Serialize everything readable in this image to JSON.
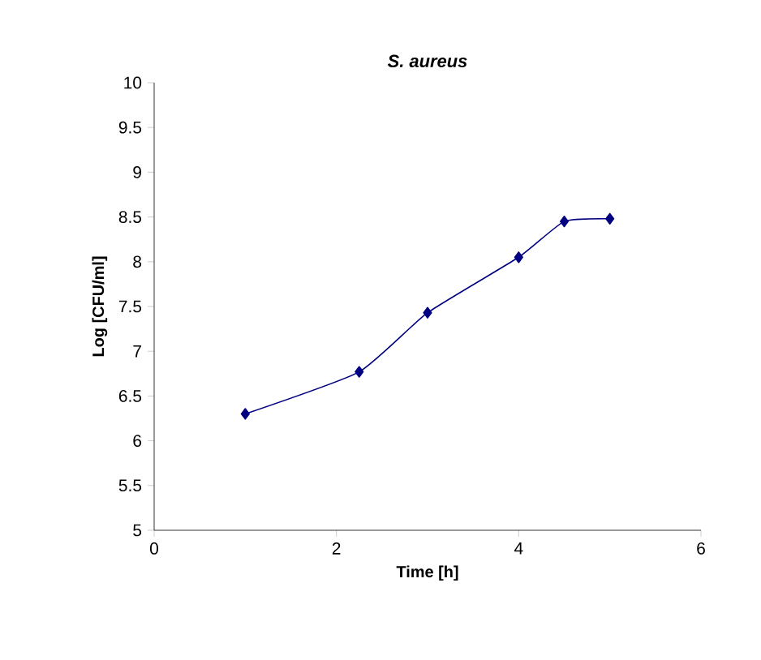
{
  "chart_data": {
    "type": "line",
    "title": "*S. aureus*",
    "xlabel": "Time [h]",
    "ylabel": "Log [CFU/ml]",
    "x": [
      1,
      2.25,
      3,
      4,
      4.5,
      5
    ],
    "series": [
      {
        "color": "#000080",
        "values": [
          6.3,
          6.77,
          7.43,
          8.05,
          8.45,
          8.48
        ]
      }
    ],
    "xlim": [
      0,
      6
    ],
    "xticks": [
      0,
      2,
      4,
      6
    ],
    "ylim": [
      5,
      10
    ],
    "yticks": [
      5,
      5.5,
      6,
      6.5,
      7,
      7.5,
      8,
      8.5,
      9,
      9.5,
      10
    ],
    "marker": "diamond",
    "line_style": "solid"
  }
}
